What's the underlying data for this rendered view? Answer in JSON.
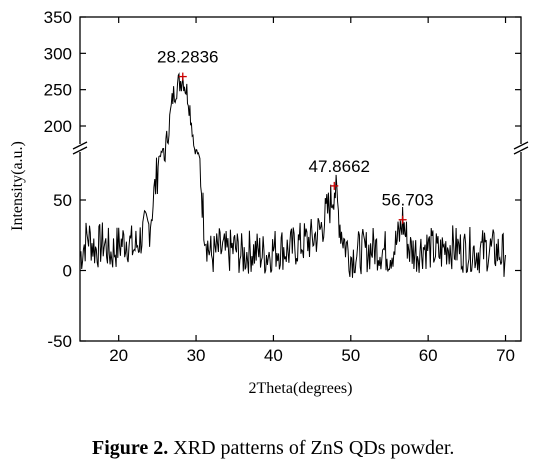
{
  "chart_data": {
    "type": "line",
    "xlabel": "2Theta(degrees)",
    "ylabel": "Intensity(a.u.)",
    "xlim": [
      15,
      72
    ],
    "ylim_lower": [
      -50,
      80
    ],
    "ylim_upper": [
      150,
      350
    ],
    "axis_break_at_y": 100,
    "x_ticks": [
      20,
      30,
      40,
      50,
      60,
      70
    ],
    "y_ticks": [
      350,
      300,
      250,
      200,
      50,
      0,
      -50
    ],
    "peaks": [
      {
        "x": 28.2836,
        "y": 268,
        "label": "28.2836"
      },
      {
        "x": 47.8662,
        "y": 60,
        "label": "47.8662"
      },
      {
        "x": 56.703,
        "y": 36,
        "label": "56.703"
      }
    ],
    "marker_color": "#cc0000",
    "line_color": "#000000",
    "series": [
      {
        "x": [
          15.0,
          16.0,
          17.0,
          18.0,
          19.0,
          20.0,
          21.0,
          22.0,
          23.0,
          24.0,
          25.0,
          25.5,
          26.0,
          26.5,
          27.0,
          27.5,
          28.0,
          28.3,
          28.6,
          29.0,
          29.5,
          30.0,
          30.5,
          31.0,
          31.5,
          32.0,
          33.0,
          34.0,
          35.0,
          36.0,
          37.0,
          38.0,
          39.0,
          40.0,
          41.0,
          42.0,
          43.0,
          44.0,
          45.0,
          46.0,
          46.5,
          47.0,
          47.5,
          47.9,
          48.3,
          48.7,
          49.2,
          50.0,
          51.0,
          52.0,
          53.0,
          54.0,
          55.0,
          55.8,
          56.3,
          56.7,
          57.1,
          57.6,
          58.5,
          59.5,
          60.5,
          61.5,
          62.5,
          63.5,
          64.5,
          65.5,
          66.5,
          67.5,
          68.5,
          69.5,
          70.0
        ],
        "y": [
          10,
          25,
          15,
          20,
          12,
          18,
          22,
          15,
          25,
          32,
          70,
          110,
          165,
          200,
          240,
          255,
          262,
          268,
          255,
          240,
          200,
          140,
          75,
          35,
          18,
          10,
          15,
          12,
          16,
          10,
          14,
          13,
          11,
          15,
          16,
          14,
          18,
          20,
          22,
          28,
          35,
          42,
          50,
          60,
          45,
          30,
          20,
          10,
          13,
          14,
          16,
          15,
          12,
          18,
          25,
          36,
          25,
          15,
          13,
          17,
          15,
          12,
          18,
          16,
          14,
          15,
          13,
          15,
          14,
          12,
          11
        ]
      }
    ]
  },
  "caption": {
    "bold": "Figure 2.",
    "text": " XRD patterns of ZnS QDs powder."
  }
}
